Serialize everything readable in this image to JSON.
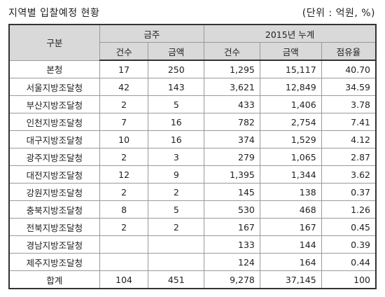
{
  "title": "지역별 입찰예정 현황",
  "unit": "(단위 : 억원, %)",
  "header": {
    "region": "구분",
    "group1": "금주",
    "group2": "2015년 누계",
    "sub": [
      "건수",
      "금액",
      "건수",
      "금액",
      "점유율"
    ]
  },
  "rows": [
    {
      "name": "본청",
      "v": [
        "17",
        "250",
        "1,295",
        "15,117",
        "40.70"
      ]
    },
    {
      "name": "서울지방조달청",
      "v": [
        "42",
        "143",
        "3,621",
        "12,849",
        "34.59"
      ]
    },
    {
      "name": "부산지방조달청",
      "v": [
        "2",
        "5",
        "433",
        "1,406",
        "3.78"
      ]
    },
    {
      "name": "인천지방조달청",
      "v": [
        "7",
        "16",
        "782",
        "2,754",
        "7.41"
      ]
    },
    {
      "name": "대구지방조달청",
      "v": [
        "10",
        "16",
        "374",
        "1,529",
        "4.12"
      ]
    },
    {
      "name": "광주지방조달청",
      "v": [
        "2",
        "3",
        "279",
        "1,065",
        "2.87"
      ]
    },
    {
      "name": "대전지방조달청",
      "v": [
        "12",
        "9",
        "1,395",
        "1,344",
        "3.62"
      ]
    },
    {
      "name": "강원지방조달청",
      "v": [
        "2",
        "2",
        "145",
        "138",
        "0.37"
      ]
    },
    {
      "name": "충북지방조달청",
      "v": [
        "8",
        "5",
        "530",
        "468",
        "1.26"
      ]
    },
    {
      "name": "전북지방조달청",
      "v": [
        "2",
        "2",
        "167",
        "167",
        "0.45"
      ]
    },
    {
      "name": "경남지방조달청",
      "v": [
        "",
        "",
        "133",
        "144",
        "0.39"
      ]
    },
    {
      "name": "제주지방조달청",
      "v": [
        "",
        "",
        "124",
        "164",
        "0.44"
      ]
    },
    {
      "name": "합계",
      "v": [
        "104",
        "451",
        "9,278",
        "37,145",
        "100"
      ]
    }
  ]
}
